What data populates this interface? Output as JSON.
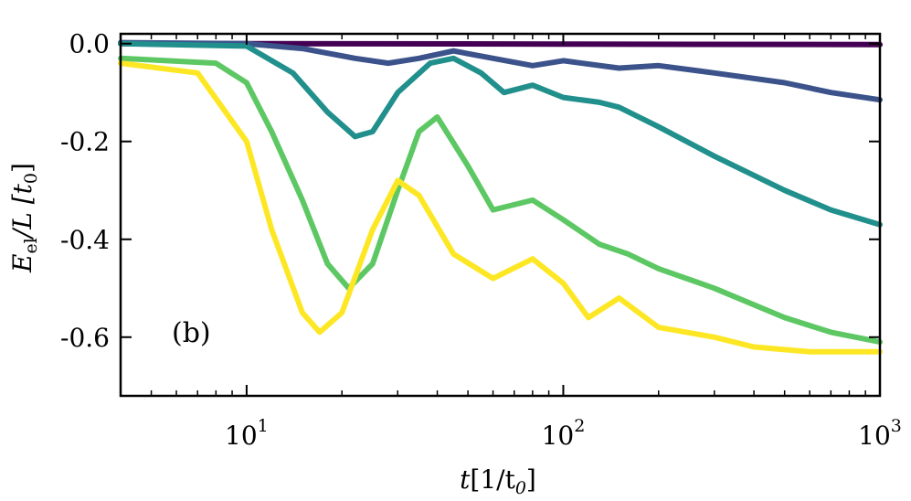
{
  "chart_data": {
    "type": "line",
    "panel_label": "(b)",
    "ylabel": {
      "main": "E",
      "sub": "el",
      "rest": "/L [t",
      "sub2": "0",
      "close": "]"
    },
    "xlabel": {
      "main": "t",
      "rest": "[1/t",
      "sub": "0",
      "close": "]"
    },
    "xscale": "log",
    "xlim": [
      4.0,
      1000
    ],
    "ylim": [
      -0.72,
      0.02
    ],
    "x_ticks": [
      {
        "value": 10,
        "base": "10",
        "exp": "1"
      },
      {
        "value": 100,
        "base": "10",
        "exp": "2"
      },
      {
        "value": 1000,
        "base": "10",
        "exp": "3"
      }
    ],
    "y_ticks": [
      {
        "value": 0.0,
        "label": "0.0"
      },
      {
        "value": -0.2,
        "label": "-0.2"
      },
      {
        "value": -0.4,
        "label": "-0.4"
      },
      {
        "value": -0.6,
        "label": "-0.6"
      }
    ],
    "series": [
      {
        "name": "series-1",
        "color": "#440154",
        "points": [
          [
            4.0,
            0.0
          ],
          [
            10,
            0.0
          ],
          [
            100,
            -0.001
          ],
          [
            1000,
            -0.002
          ]
        ]
      },
      {
        "name": "series-2",
        "color": "#3b528b",
        "points": [
          [
            4.0,
            0.002
          ],
          [
            10,
            0.0
          ],
          [
            15,
            -0.01
          ],
          [
            22,
            -0.03
          ],
          [
            28,
            -0.04
          ],
          [
            35,
            -0.03
          ],
          [
            45,
            -0.015
          ],
          [
            60,
            -0.03
          ],
          [
            80,
            -0.045
          ],
          [
            100,
            -0.035
          ],
          [
            150,
            -0.05
          ],
          [
            200,
            -0.045
          ],
          [
            300,
            -0.06
          ],
          [
            500,
            -0.08
          ],
          [
            700,
            -0.1
          ],
          [
            1000,
            -0.115
          ]
        ]
      },
      {
        "name": "series-3",
        "color": "#21908d",
        "points": [
          [
            4.0,
            0.0
          ],
          [
            10,
            -0.005
          ],
          [
            14,
            -0.06
          ],
          [
            18,
            -0.14
          ],
          [
            22,
            -0.19
          ],
          [
            25,
            -0.18
          ],
          [
            30,
            -0.1
          ],
          [
            38,
            -0.04
          ],
          [
            45,
            -0.03
          ],
          [
            55,
            -0.06
          ],
          [
            65,
            -0.1
          ],
          [
            80,
            -0.085
          ],
          [
            100,
            -0.11
          ],
          [
            130,
            -0.12
          ],
          [
            150,
            -0.13
          ],
          [
            200,
            -0.17
          ],
          [
            300,
            -0.23
          ],
          [
            500,
            -0.3
          ],
          [
            700,
            -0.34
          ],
          [
            1000,
            -0.37
          ]
        ]
      },
      {
        "name": "series-4",
        "color": "#5dc863",
        "points": [
          [
            4.0,
            -0.03
          ],
          [
            8,
            -0.04
          ],
          [
            10,
            -0.08
          ],
          [
            12,
            -0.18
          ],
          [
            15,
            -0.32
          ],
          [
            18,
            -0.45
          ],
          [
            21,
            -0.5
          ],
          [
            25,
            -0.45
          ],
          [
            30,
            -0.3
          ],
          [
            35,
            -0.18
          ],
          [
            40,
            -0.15
          ],
          [
            50,
            -0.25
          ],
          [
            60,
            -0.34
          ],
          [
            80,
            -0.32
          ],
          [
            100,
            -0.36
          ],
          [
            130,
            -0.41
          ],
          [
            160,
            -0.43
          ],
          [
            200,
            -0.46
          ],
          [
            300,
            -0.5
          ],
          [
            500,
            -0.56
          ],
          [
            700,
            -0.59
          ],
          [
            1000,
            -0.61
          ]
        ]
      },
      {
        "name": "series-5",
        "color": "#fde725",
        "points": [
          [
            4.0,
            -0.04
          ],
          [
            7,
            -0.06
          ],
          [
            10,
            -0.2
          ],
          [
            12,
            -0.38
          ],
          [
            15,
            -0.55
          ],
          [
            17,
            -0.59
          ],
          [
            20,
            -0.55
          ],
          [
            25,
            -0.38
          ],
          [
            30,
            -0.28
          ],
          [
            35,
            -0.31
          ],
          [
            45,
            -0.43
          ],
          [
            60,
            -0.48
          ],
          [
            80,
            -0.44
          ],
          [
            100,
            -0.49
          ],
          [
            120,
            -0.56
          ],
          [
            150,
            -0.52
          ],
          [
            200,
            -0.58
          ],
          [
            300,
            -0.6
          ],
          [
            400,
            -0.62
          ],
          [
            600,
            -0.63
          ],
          [
            1000,
            -0.63
          ]
        ]
      }
    ]
  }
}
